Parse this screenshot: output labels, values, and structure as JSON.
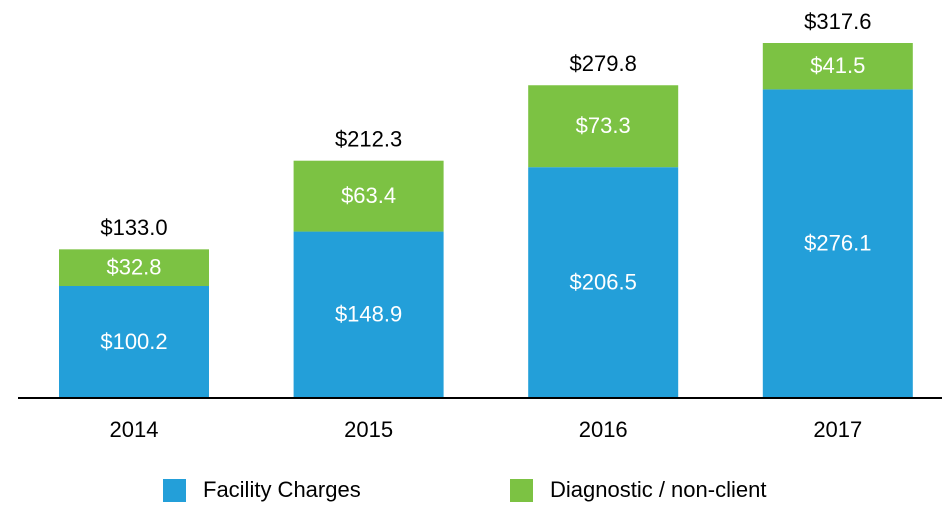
{
  "chart_data": {
    "type": "stacked_bar",
    "categories": [
      "2014",
      "2015",
      "2016",
      "2017"
    ],
    "series": [
      {
        "name": "Facility Charges",
        "color": "#239fd9",
        "values": [
          100.2,
          148.9,
          206.5,
          276.1
        ],
        "value_labels": [
          "$100.2",
          "$148.9",
          "$206.5",
          "$276.1"
        ]
      },
      {
        "name": "Diagnostic / non-client",
        "color": "#7cc243",
        "values": [
          32.8,
          63.4,
          73.3,
          41.5
        ],
        "value_labels": [
          "$32.8",
          "$63.4",
          "$73.3",
          "$41.5"
        ]
      }
    ],
    "totals": [
      133.0,
      212.3,
      279.8,
      317.6
    ],
    "total_labels": [
      "$133.0",
      "$212.3",
      "$279.8",
      "$317.6"
    ],
    "legend": "bottom"
  }
}
